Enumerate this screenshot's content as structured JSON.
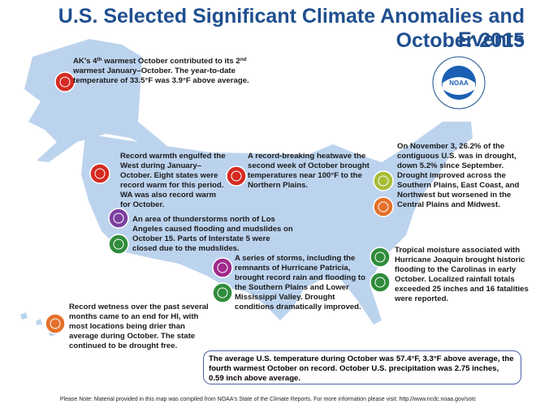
{
  "title": "U.S. Selected Significant Climate Anomalies and Events",
  "subtitle": "October 2015",
  "logo": "NOAA",
  "events": [
    {
      "parts": [
        "AK's 4",
        "th",
        " warmest October contributed to its 2",
        "nd",
        " warmest January–October. The year-to-date temperature of 33.5°F was 3.9°F above average."
      ]
    },
    {
      "parts": [
        "Record warmth engulfed the West during January–October. Eight states were record warm for this period. WA was also record warm for October."
      ]
    },
    {
      "parts": [
        "A record-breaking heatwave the second week of October brought temperatures near 100°F to the Northern Plains."
      ]
    },
    {
      "parts": [
        "An area of thunderstorms north of Los Angeles caused flooding and mudslides on October 15. Parts of Interstate 5 were closed due to the mudslides."
      ]
    },
    {
      "parts": [
        "A series of storms, including the remnants of Hurricane Patricia, brought record rain and flooding to the Southern Plains and Lower Mississippi Valley.  Drought conditions dramatically improved."
      ]
    },
    {
      "parts": [
        "Record wetness over the past several months came to an end for HI, with most locations being drier than average during October. The state continued to be drought free."
      ]
    },
    {
      "parts": [
        "On November 3, 26.2% of the contiguous U.S. was in drought, down 5.2% since September. Drought improved across the Southern Plains, East Coast, and Northwest but worsened in the Central Plains and Midwest."
      ]
    },
    {
      "parts": [
        "Tropical moisture associated with Hurricane Joaquin brought historic flooding to the Carolinas in early October. Localized rainfall totals exceeded 25 inches and 16 fatalities were reported."
      ]
    }
  ],
  "summary": "The average U.S. temperature during October was 57.4°F, 3.3°F above average, the fourth warmest October on record. October U.S. precipitation was 2.75 inches, 0.59 inch above average.",
  "footer": "Please Note: Material provided in this map was compiled from NOAA's State of the Climate Reports. For more information please visit: http://www.ncdc.noaa.gov/sotc"
}
